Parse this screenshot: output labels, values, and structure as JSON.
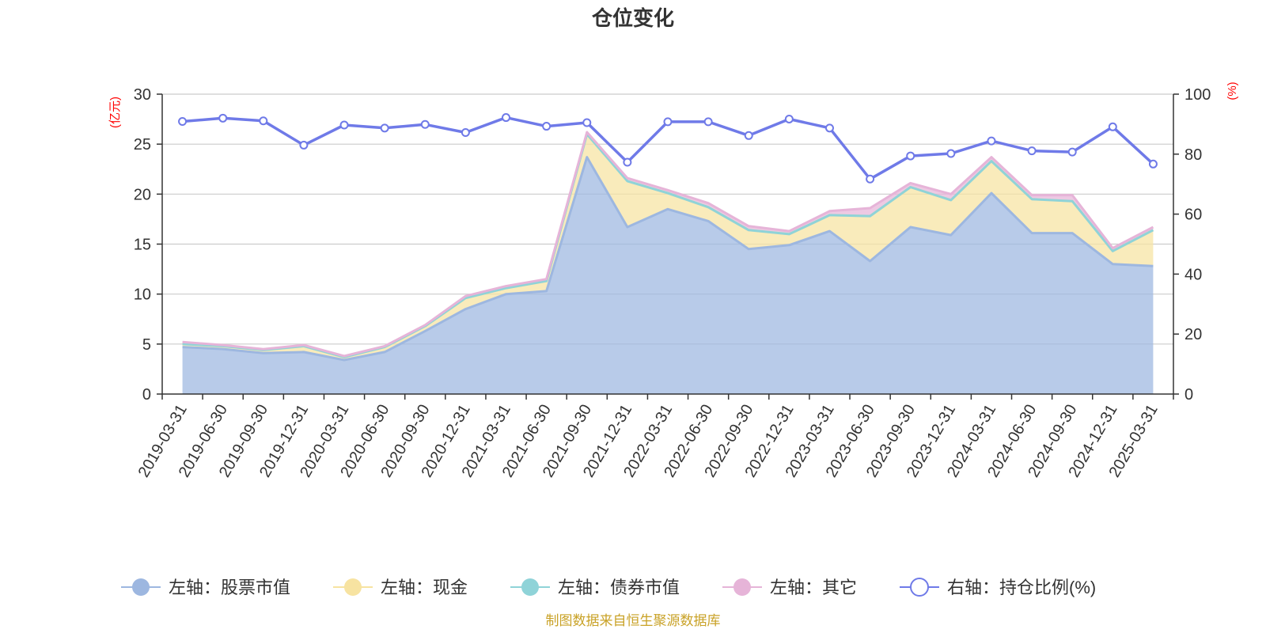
{
  "chart_data": {
    "type": "area",
    "title": "仓位变化",
    "left_axis_unit": "(亿元)",
    "right_axis_unit": "(%)",
    "ylim_left": [
      0,
      30
    ],
    "yticks_left": [
      0,
      5,
      10,
      15,
      20,
      25,
      30
    ],
    "ylim_right": [
      0,
      100
    ],
    "yticks_right": [
      0,
      20,
      40,
      60,
      80,
      100
    ],
    "grid": true,
    "legend_position": "bottom",
    "categories": [
      "2019-03-31",
      "2019-06-30",
      "2019-09-30",
      "2019-12-31",
      "2020-03-31",
      "2020-06-30",
      "2020-09-30",
      "2020-12-31",
      "2021-03-31",
      "2021-06-30",
      "2021-09-30",
      "2021-12-31",
      "2022-03-31",
      "2022-06-30",
      "2022-09-30",
      "2022-12-31",
      "2023-03-31",
      "2023-06-30",
      "2023-09-30",
      "2023-12-31",
      "2024-03-31",
      "2024-06-30",
      "2024-09-30",
      "2024-12-31",
      "2025-03-31"
    ],
    "series": [
      {
        "name": "左轴：股票市值",
        "axis": "left",
        "color": "#9db7e0",
        "values": [
          4.7,
          4.5,
          4.1,
          4.2,
          3.4,
          4.2,
          6.3,
          8.5,
          10.0,
          10.3,
          23.7,
          16.7,
          18.5,
          17.3,
          14.5,
          14.9,
          16.3,
          13.3,
          16.7,
          15.9,
          20.1,
          16.1,
          16.1,
          13.0,
          12.8
        ]
      },
      {
        "name": "左轴：现金",
        "axis": "left",
        "color": "#f7e3a1",
        "values": [
          0.3,
          0.3,
          0.3,
          0.6,
          0.3,
          0.5,
          0.5,
          1.1,
          0.6,
          1.0,
          2.3,
          4.6,
          1.6,
          1.4,
          1.9,
          1.1,
          1.6,
          4.5,
          4.0,
          3.5,
          3.2,
          3.4,
          3.2,
          1.3,
          3.6
        ]
      },
      {
        "name": "左轴：债券市值",
        "axis": "left",
        "color": "#8fd3d8",
        "values": [
          0,
          0,
          0,
          0,
          0,
          0,
          0,
          0,
          0,
          0,
          0,
          0,
          0,
          0,
          0,
          0,
          0,
          0,
          0,
          0,
          0,
          0,
          0,
          0,
          0
        ]
      },
      {
        "name": "左轴：其它",
        "axis": "left",
        "color": "#e6b4d8",
        "values": [
          0.2,
          0.1,
          0.1,
          0.1,
          0.1,
          0.1,
          0.1,
          0.2,
          0.2,
          0.2,
          0.2,
          0.3,
          0.3,
          0.4,
          0.4,
          0.3,
          0.4,
          0.8,
          0.4,
          0.6,
          0.4,
          0.4,
          0.6,
          0.3,
          0.3
        ]
      },
      {
        "name": "右轴：持仓比例(%)",
        "axis": "right",
        "color": "#6f7ae8",
        "type": "line",
        "values": [
          90.9,
          92.0,
          91.1,
          83.0,
          89.7,
          88.7,
          89.9,
          87.2,
          92.2,
          89.3,
          90.5,
          77.3,
          90.8,
          90.8,
          86.2,
          91.7,
          88.7,
          71.7,
          79.4,
          80.2,
          84.4,
          81.1,
          80.7,
          89.1,
          76.7
        ]
      }
    ],
    "source": "制图数据来自恒生聚源数据库"
  }
}
